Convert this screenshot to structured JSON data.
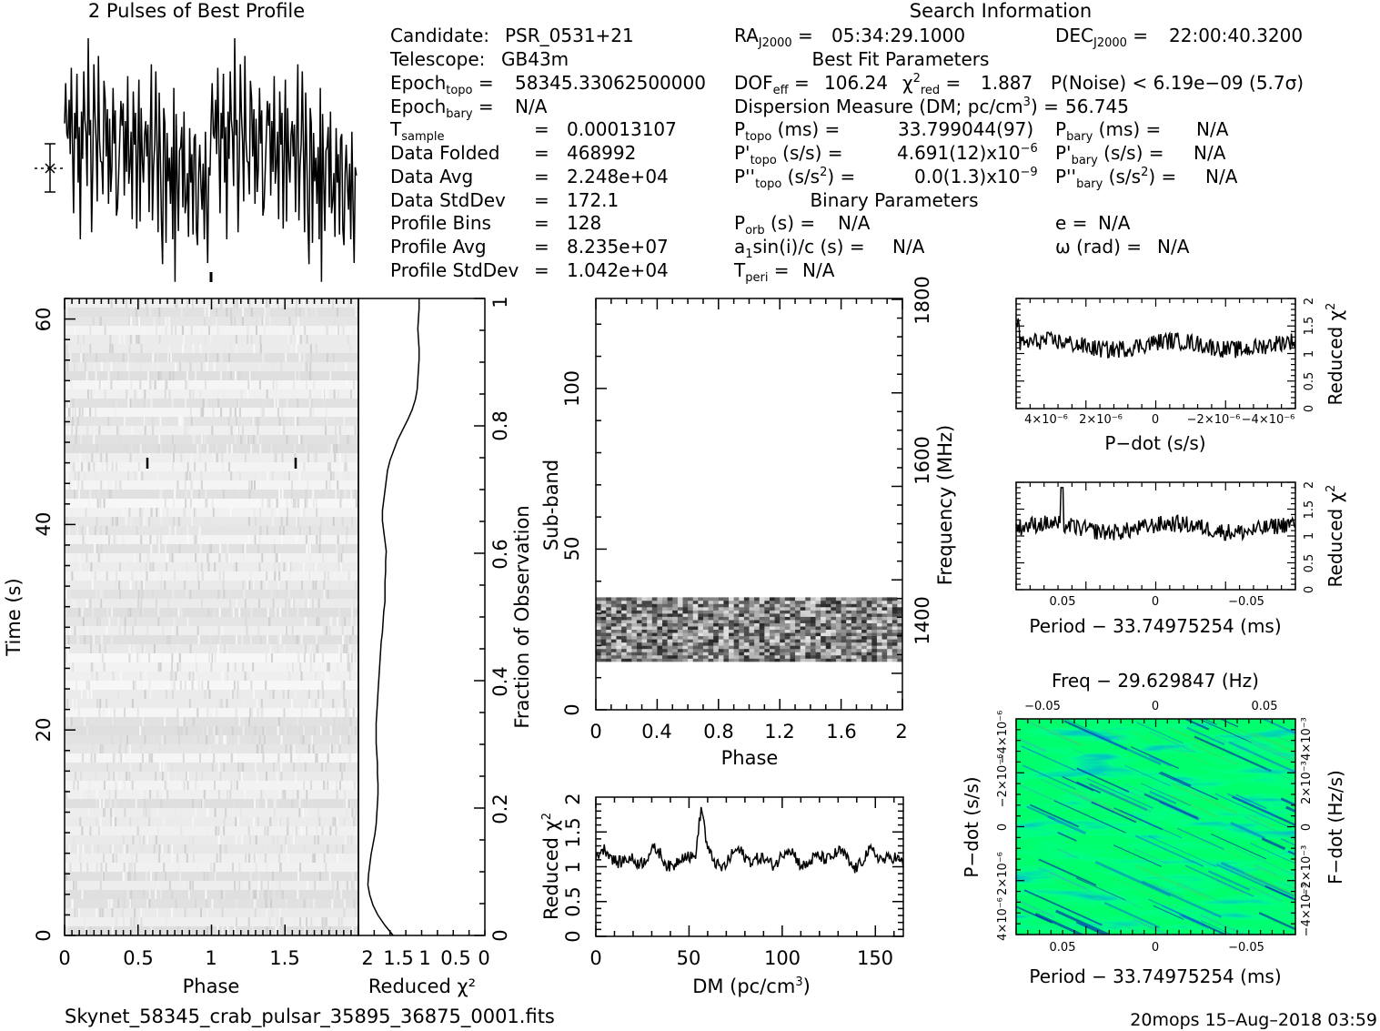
{
  "header": {
    "profile_title": "2 Pulses of Best Profile",
    "search_title": "Search Information",
    "best_fit_title": "Best Fit Parameters",
    "binary_title": "Binary Parameters",
    "filename": "Skynet_58345_crab_pulsar_35895_36875_0001.fits",
    "footer_stamp": "20mops 15–Aug–2018 03:59"
  },
  "info": {
    "candidate_label": "Candidate:",
    "candidate": "PSR_0531+21",
    "telescope_label": "Telescope:",
    "telescope": "GB43m",
    "epoch_topo": "58345.33062500000",
    "epoch_bary": "N/A",
    "t_sample": "0.00013107",
    "data_folded_label": "Data Folded",
    "data_folded": "468992",
    "data_avg_label": "Data Avg",
    "data_avg": "2.248e+04",
    "data_stddev_label": "Data StdDev",
    "data_stddev": "172.1",
    "profile_bins_label": "Profile Bins",
    "profile_bins": "128",
    "profile_avg_label": "Profile Avg",
    "profile_avg": "8.235e+07",
    "profile_stddev_label": "Profile StdDev",
    "profile_stddev": "1.042e+04",
    "ra": "05:34:29.1000",
    "dec": "22:00:40.3200",
    "dof_eff": "106.24",
    "chi2_red": "1.887",
    "p_noise": "P(Noise) < 6.19e−09   (5.7σ)",
    "dm_line": "Dispersion Measure (DM; pc/cm",
    "dm_value": "56.745",
    "p_topo": "33.799044(97)",
    "pdot_topo": "4.691(12)x10",
    "pdot_topo_exp": "−6",
    "pddot_topo": "0.0(1.3)x10",
    "pddot_topo_exp": "−9",
    "p_bary": "N/A",
    "pdot_bary": "N/A",
    "pddot_bary": "N/A",
    "p_orb": "N/A",
    "a1sini": "N/A",
    "t_peri": "N/A",
    "ecc": "N/A",
    "omega": "N/A"
  },
  "colors": {
    "ppdot_low": "#0000b4",
    "ppdot_mid": "#0a6fd8",
    "ppdot_high": "#27c8a8",
    "ppdot_peak": "#33e060",
    "line": "#000000"
  },
  "chart_data": [
    {
      "id": "profile",
      "type": "line",
      "title": "2 Pulses of Best Profile",
      "xlabel": "",
      "ylabel": "",
      "x_range": [
        0,
        2
      ],
      "n_bins": 128,
      "n_pulses": 2,
      "values": [
        38,
        72,
        29,
        25,
        58,
        12,
        85,
        20,
        -38,
        47,
        25,
        80,
        -12,
        35,
        -60,
        48,
        8,
        82,
        41,
        30,
        -15,
        110,
        28,
        41,
        -54,
        3,
        88,
        46,
        22,
        -28,
        95,
        24,
        6,
        5,
        -22,
        74,
        59,
        10,
        50,
        -30,
        42,
        -20,
        0,
        68,
        21,
        49,
        -40,
        -33,
        -6,
        26,
        57,
        36,
        55,
        -23,
        40,
        -3,
        78,
        -13,
        2,
        31,
        -43,
        65,
        20,
        47,
        -51,
        17,
        75,
        -45,
        51,
        6,
        -12,
        28,
        40,
        10,
        37,
        -37,
        24,
        88,
        -44,
        1,
        21,
        82,
        16,
        -54,
        64,
        9,
        -46,
        -81,
        51,
        38,
        -63,
        30,
        -11,
        9,
        -30,
        18,
        -60,
        68,
        -96,
        46,
        -8,
        -53,
        15,
        18,
        35,
        -33,
        48,
        -38,
        -27,
        -4,
        -58,
        34,
        -12,
        12,
        -56,
        25,
        29,
        -52,
        -65,
        -4,
        20,
        -15,
        -35,
        4,
        -60,
        31,
        -27,
        -80,
        1,
        -6
      ]
    },
    {
      "id": "time_phase",
      "type": "heatmap",
      "title": "",
      "xlabel": "Phase",
      "ylabel": "Time (s)",
      "right_label": "Fraction of Observation",
      "x_ticks": [
        "0",
        "0.5",
        "1",
        "1.5"
      ],
      "y_ticks": [
        "0",
        "20",
        "40",
        "60"
      ],
      "right_ticks": [
        "0",
        "0.2",
        "0.4",
        "0.6",
        "0.8",
        "1"
      ],
      "xlim": [
        0,
        2
      ],
      "ylim": [
        0,
        62
      ],
      "colormap": "gray"
    },
    {
      "id": "time_redchi",
      "type": "line",
      "title": "",
      "xlabel": "Reduced χ²",
      "x_ticks": [
        "2",
        "1.5",
        "1",
        "0.5",
        "0"
      ],
      "xlim": [
        2,
        0
      ],
      "values": [
        1.45,
        1.58,
        1.69,
        1.77,
        1.82,
        1.85,
        1.84,
        1.82,
        1.8,
        1.77,
        1.74,
        1.72,
        1.71,
        1.7,
        1.69,
        1.69,
        1.7,
        1.7,
        1.71,
        1.72,
        1.72,
        1.72,
        1.71,
        1.7,
        1.69,
        1.68,
        1.67,
        1.66,
        1.65,
        1.64,
        1.62,
        1.61,
        1.6,
        1.58,
        1.58,
        1.58,
        1.57,
        1.57,
        1.56,
        1.58,
        1.6,
        1.62,
        1.62,
        1.6,
        1.58,
        1.56,
        1.54,
        1.5,
        1.44,
        1.38,
        1.3,
        1.22,
        1.15,
        1.1,
        1.07,
        1.06,
        1.05,
        1.04,
        1.04,
        1.05,
        1.06,
        1.05,
        1.04,
        1.04
      ]
    },
    {
      "id": "subband_phase",
      "type": "heatmap",
      "title": "",
      "xlabel": "Phase",
      "ylabel": "Sub-band",
      "right_label": "Frequency (MHz)",
      "x_ticks": [
        "0",
        "0.4",
        "0.8",
        "1.2",
        "1.6",
        "2"
      ],
      "y_ticks": [
        "0",
        "50",
        "100"
      ],
      "right_ticks": [
        "1400",
        "1600",
        "1800"
      ],
      "xlim": [
        0,
        2
      ],
      "ylim": [
        0,
        128
      ],
      "filled_subbands": [
        15,
        35
      ],
      "colormap": "gray"
    },
    {
      "id": "dm_chi",
      "type": "line",
      "title": "",
      "xlabel": "DM (pc/cm³)",
      "ylabel": "Reduced χ²",
      "x_ticks": [
        "0",
        "50",
        "100",
        "150"
      ],
      "y_ticks": [
        "0",
        "0.5",
        "1",
        "1.5",
        "2"
      ],
      "xlim": [
        0,
        165
      ],
      "ylim": [
        0,
        2
      ],
      "peak_dm": 56.7,
      "peak_value": 1.85
    },
    {
      "id": "pdot_chi",
      "type": "line",
      "title": "",
      "xlabel": "P−dot (s/s)",
      "ylabel": "Reduced χ²",
      "x_ticks": [
        "4×10⁻⁶",
        "2×10⁻⁶",
        "0",
        "−2×10⁻⁶",
        "−4×10⁻⁶"
      ],
      "y_ticks": [
        "0",
        "0.5",
        "1",
        "1.5",
        "2"
      ],
      "ylim": [
        0,
        2
      ]
    },
    {
      "id": "period_chi",
      "type": "line",
      "title": "",
      "xlabel": "Period − 33.74975254 (ms)",
      "ylabel": "Reduced χ²",
      "x_ticks": [
        "0.05",
        "0",
        "−0.05"
      ],
      "y_ticks": [
        "0",
        "0.5",
        "1",
        "1.5",
        "2"
      ],
      "ylim": [
        0,
        2
      ]
    },
    {
      "id": "ppdot",
      "type": "heatmap",
      "title": "Freq − 29.629847 (Hz)",
      "xlabel": "Period − 33.74975254 (ms)",
      "ylabel": "P−dot (s/s)",
      "right_label": "F−dot (Hz/s)",
      "bottom_ticks": [
        "0.05",
        "0",
        "−0.05"
      ],
      "top_ticks": [
        "−0.05",
        "0",
        "0.05"
      ],
      "left_ticks": [
        "4×10⁻⁶",
        "2×10⁻⁶",
        "0",
        "−2×10⁻⁶",
        "−4×10⁻⁶"
      ],
      "right_ticks": [
        "−4×10⁻³",
        "−2×10⁻³",
        "0",
        "2×10⁻³",
        "4×10⁻³"
      ],
      "colormap": "blue-green"
    }
  ]
}
